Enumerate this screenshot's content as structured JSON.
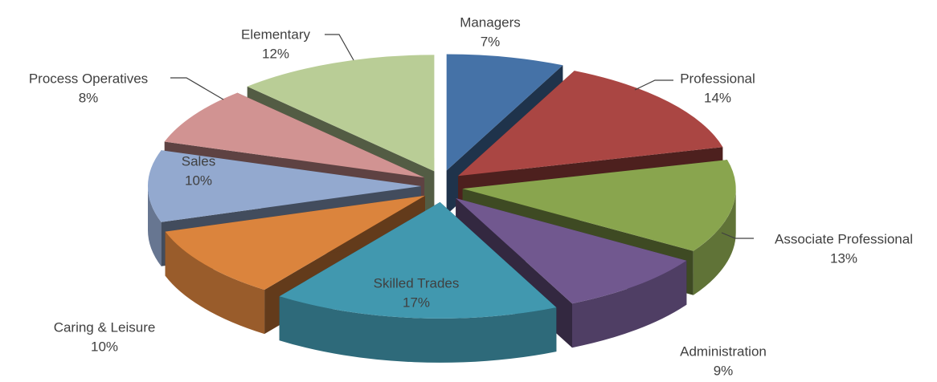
{
  "chart_data": {
    "type": "pie",
    "categories": [
      "Managers",
      "Professional",
      "Associate Professional",
      "Administration",
      "Skilled Trades",
      "Caring & Leisure",
      "Sales",
      "Process Operatives",
      "Elementary"
    ],
    "values": [
      7,
      14,
      13,
      9,
      17,
      10,
      10,
      8,
      12
    ],
    "value_labels": [
      "7%",
      "14%",
      "13%",
      "9%",
      "17%",
      "10%",
      "10%",
      "8%",
      "12%"
    ],
    "colors": [
      "#4572a7",
      "#aa4643",
      "#89a54e",
      "#71588f",
      "#4198af",
      "#db843d",
      "#93a9cf",
      "#d19392",
      "#b9cd96"
    ],
    "legend": false
  }
}
